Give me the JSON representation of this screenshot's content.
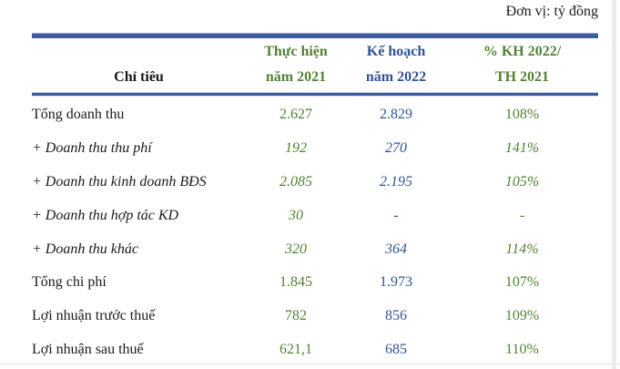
{
  "unit_label": "Đơn vị: tỷ đồng",
  "colors": {
    "green": "#538135",
    "blue": "#2F5496",
    "rule": "#3e5b9b"
  },
  "chart_data": {
    "type": "table",
    "title": "Đơn vị: tỷ đồng",
    "columns": [
      "Chỉ tiêu",
      "Thực hiện năm 2021",
      "Kế hoạch năm 2022",
      "% KH 2022/ TH 2021"
    ],
    "rows": [
      [
        "Tổng doanh thu",
        "2.627",
        "2.829",
        "108%"
      ],
      [
        "+ Doanh thu thu phí",
        "192",
        "270",
        "141%"
      ],
      [
        "+ Doanh thu kinh doanh BĐS",
        "2.085",
        "2.195",
        "105%"
      ],
      [
        "+ Doanh thu hợp tác KD",
        "30",
        "-",
        "-"
      ],
      [
        "+ Doanh thu khác",
        "320",
        "364",
        "114%"
      ],
      [
        "Tổng chi phí",
        "1.845",
        "1.973",
        "107%"
      ],
      [
        "Lợi nhuận trước thuế",
        "782",
        "856",
        "109%"
      ],
      [
        "Lợi nhuận sau thuế",
        "621,1",
        "685",
        "110%"
      ]
    ]
  },
  "table": {
    "header": {
      "col1": "Chỉ tiêu",
      "col2_line1": "Thực hiện",
      "col2_line2": "năm 2021",
      "col3_line1": "Kế hoạch",
      "col3_line2": "năm 2022",
      "col4_line1": "% KH 2022/",
      "col4_line2": "TH 2021"
    },
    "rows": [
      {
        "label": "Tổng doanh thu",
        "italic": false,
        "values": [
          "2.627",
          "2.829",
          "108%"
        ]
      },
      {
        "label": "+ Doanh thu thu phí",
        "italic": true,
        "values": [
          "192",
          "270",
          "141%"
        ]
      },
      {
        "label": "+ Doanh thu kinh doanh BĐS",
        "italic": true,
        "values": [
          "2.085",
          "2.195",
          "105%"
        ]
      },
      {
        "label": "+ Doanh thu hợp tác KD",
        "italic": true,
        "values": [
          "30",
          "-",
          "-"
        ]
      },
      {
        "label": "+ Doanh thu khác",
        "italic": true,
        "values": [
          "320",
          "364",
          "114%"
        ]
      },
      {
        "label": "Tổng chi phí",
        "italic": false,
        "values": [
          "1.845",
          "1.973",
          "107%"
        ]
      },
      {
        "label": "Lợi nhuận trước thuế",
        "italic": false,
        "values": [
          "782",
          "856",
          "109%"
        ]
      },
      {
        "label": "Lợi nhuận sau thuế",
        "italic": false,
        "values": [
          "621,1",
          "685",
          "110%"
        ]
      }
    ]
  }
}
